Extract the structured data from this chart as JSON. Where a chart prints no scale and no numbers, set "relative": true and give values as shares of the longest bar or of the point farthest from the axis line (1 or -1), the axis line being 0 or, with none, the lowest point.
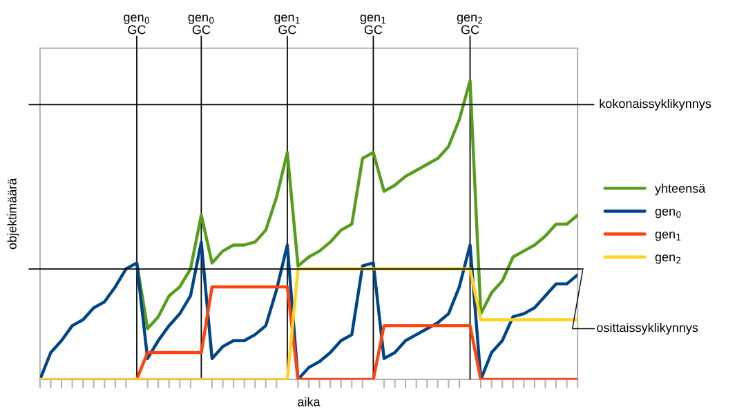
{
  "chart_data": {
    "type": "line",
    "relative": true,
    "xlabel": "aika",
    "ylabel": "objektimäärä",
    "categories": [
      null,
      null,
      null,
      null,
      null,
      null,
      null,
      null,
      null,
      "gen$_{0}$\nGC",
      null,
      null,
      null,
      null,
      null,
      "gen$_{0}$\nGC",
      null,
      null,
      null,
      null,
      null,
      null,
      null,
      "gen$_{1}$\nGC",
      null,
      null,
      null,
      null,
      null,
      null,
      null,
      "gen$_{1}$\nGC",
      null,
      null,
      null,
      null,
      null,
      null,
      null,
      null,
      "gen$_{2}$\nGC",
      null,
      null,
      null,
      null,
      null,
      null,
      null,
      null,
      null,
      null
    ],
    "series": [
      {
        "name": "yhteensä",
        "color": "#579d1c",
        "values": [
          null,
          null,
          null,
          null,
          null,
          null,
          null,
          null,
          null,
          0.39,
          0.17,
          0.21,
          0.28,
          0.31,
          0.37,
          0.55,
          0.39,
          0.43,
          0.45,
          0.45,
          0.46,
          0.5,
          0.61,
          0.76,
          0.38,
          0.41,
          0.43,
          0.46,
          0.5,
          0.52,
          0.74,
          0.76,
          0.63,
          0.65,
          0.68,
          0.7,
          0.72,
          0.74,
          0.78,
          0.87,
          1.0,
          0.22,
          0.29,
          0.33,
          0.41,
          0.43,
          0.45,
          0.48,
          0.52,
          0.52,
          0.55
        ]
      },
      {
        "name": "gen$_{0}$",
        "color": "#004586",
        "values": [
          0,
          0.09,
          0.13,
          0.18,
          0.2,
          0.24,
          0.26,
          0.31,
          0.37,
          0.39,
          0.07,
          0.13,
          0.18,
          0.22,
          0.28,
          0.46,
          0.07,
          0.11,
          0.13,
          0.13,
          0.15,
          0.18,
          0.3,
          0.45,
          0,
          0.04,
          0.06,
          0.09,
          0.13,
          0.15,
          0.38,
          0.39,
          0.07,
          0.09,
          0.13,
          0.15,
          0.17,
          0.19,
          0.22,
          0.31,
          0.45,
          0,
          0.09,
          0.13,
          0.21,
          0.22,
          0.24,
          0.28,
          0.32,
          0.32,
          0.35
        ]
      },
      {
        "name": "gen$_{1}$",
        "color": "#ff420e",
        "values": [
          null,
          null,
          null,
          null,
          null,
          null,
          null,
          null,
          null,
          0,
          0.09,
          0.09,
          0.09,
          0.09,
          0.09,
          0.09,
          0.31,
          0.31,
          0.31,
          0.31,
          0.31,
          0.31,
          0.31,
          0.31,
          0,
          0,
          0,
          0,
          0,
          0,
          0,
          0,
          0.18,
          0.18,
          0.18,
          0.18,
          0.18,
          0.18,
          0.18,
          0.18,
          0.18,
          0,
          0,
          0,
          0,
          0,
          0,
          0,
          0,
          0,
          0
        ]
      },
      {
        "name": "gen$_{2}$",
        "color": "#ffd320",
        "values": [
          0,
          0,
          0,
          0,
          0,
          0,
          0,
          0,
          0,
          0,
          0,
          0,
          0,
          0,
          0,
          0,
          0,
          0,
          0,
          0,
          0,
          0,
          0,
          0,
          0.37,
          0.37,
          0.37,
          0.37,
          0.37,
          0.37,
          0.37,
          0.37,
          0.37,
          0.37,
          0.37,
          0.37,
          0.37,
          0.37,
          0.37,
          0.37,
          0.37,
          0.2,
          0.2,
          0.2,
          0.2,
          0.2,
          0.2,
          0.2,
          0.2,
          0.2,
          0.2
        ]
      }
    ],
    "ref_lines": [
      {
        "axis": "y",
        "value": 0.92,
        "label": "kokonaissyklikynnys"
      },
      {
        "axis": "y",
        "value": 0.37,
        "label": "osittaissyklikynnys"
      }
    ],
    "legend": "right",
    "grid": "x",
    "marker": "none",
    "line_style": "solid"
  }
}
